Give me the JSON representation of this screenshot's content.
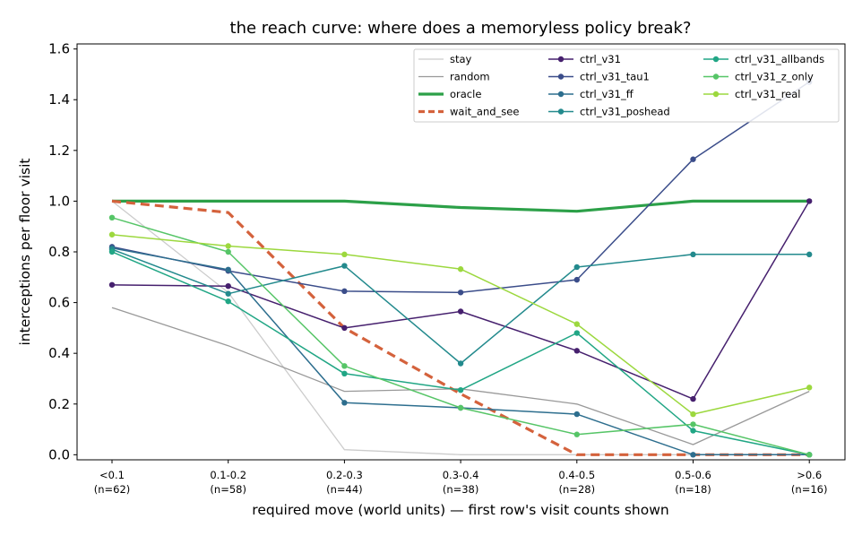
{
  "chart_data": {
    "type": "line",
    "title": "the reach curve: where does a memoryless policy break?",
    "xlabel": "required move (world units) — first row's visit counts shown",
    "ylabel": "interceptions per floor visit",
    "ylim": [
      -0.02,
      1.62
    ],
    "yticks": [
      "0.0",
      "0.2",
      "0.4",
      "0.6",
      "0.8",
      "1.0",
      "1.2",
      "1.4",
      "1.6"
    ],
    "ytick_values": [
      0,
      0.2,
      0.4,
      0.6,
      0.8,
      1.0,
      1.2,
      1.4,
      1.6
    ],
    "categories": [
      "<0.1",
      "0.1-0.2",
      "0.2-0.3",
      "0.3-0.4",
      "0.4-0.5",
      "0.5-0.6",
      ">0.6"
    ],
    "category_counts": [
      "(n=62)",
      "(n=58)",
      "(n=44)",
      "(n=38)",
      "(n=28)",
      "(n=18)",
      "(n=16)"
    ],
    "legend_position": "top-right",
    "grid": false,
    "series": [
      {
        "name": "stay",
        "color": "#cccccc",
        "style": "thin",
        "values": [
          1.0,
          0.64,
          0.02,
          0.0,
          0.0,
          0.0,
          0.0
        ]
      },
      {
        "name": "random",
        "color": "#999999",
        "style": "thin",
        "values": [
          0.58,
          0.43,
          0.25,
          0.26,
          0.2,
          0.04,
          0.25
        ]
      },
      {
        "name": "oracle",
        "color": "#2ca048",
        "style": "thick",
        "values": [
          1.0,
          1.0,
          1.0,
          0.975,
          0.96,
          1.0,
          1.0
        ]
      },
      {
        "name": "wait_and_see",
        "color": "#d4623c",
        "style": "dashed",
        "values": [
          1.0,
          0.955,
          0.5,
          0.24,
          0.0,
          0.0,
          0.0
        ]
      },
      {
        "name": "ctrl_v31",
        "color": "#46206e",
        "style": "marker",
        "values": [
          0.67,
          0.665,
          0.5,
          0.565,
          0.41,
          0.22,
          1.0
        ]
      },
      {
        "name": "ctrl_v31_tau1",
        "color": "#3b4d8a",
        "style": "marker",
        "values": [
          0.82,
          0.725,
          0.645,
          0.64,
          0.69,
          1.165,
          1.47
        ]
      },
      {
        "name": "ctrl_v31_ff",
        "color": "#2d6e8e",
        "style": "marker",
        "values": [
          0.815,
          0.73,
          0.205,
          0.185,
          0.16,
          0.0,
          0.0
        ]
      },
      {
        "name": "ctrl_v31_poshead",
        "color": "#238a8d",
        "style": "marker",
        "values": [
          0.81,
          0.635,
          0.745,
          0.36,
          0.74,
          0.79,
          0.79
        ]
      },
      {
        "name": "ctrl_v31_allbands",
        "color": "#21a685",
        "style": "marker",
        "values": [
          0.8,
          0.605,
          0.32,
          0.255,
          0.48,
          0.095,
          0.0
        ]
      },
      {
        "name": "ctrl_v31_z_only",
        "color": "#56c567",
        "style": "marker",
        "values": [
          0.935,
          0.8,
          0.35,
          0.185,
          0.08,
          0.12,
          0.0
        ]
      },
      {
        "name": "ctrl_v31_real",
        "color": "#9cd83e",
        "style": "marker",
        "values": [
          0.868,
          0.823,
          0.79,
          0.732,
          0.515,
          0.16,
          0.265
        ]
      }
    ]
  }
}
